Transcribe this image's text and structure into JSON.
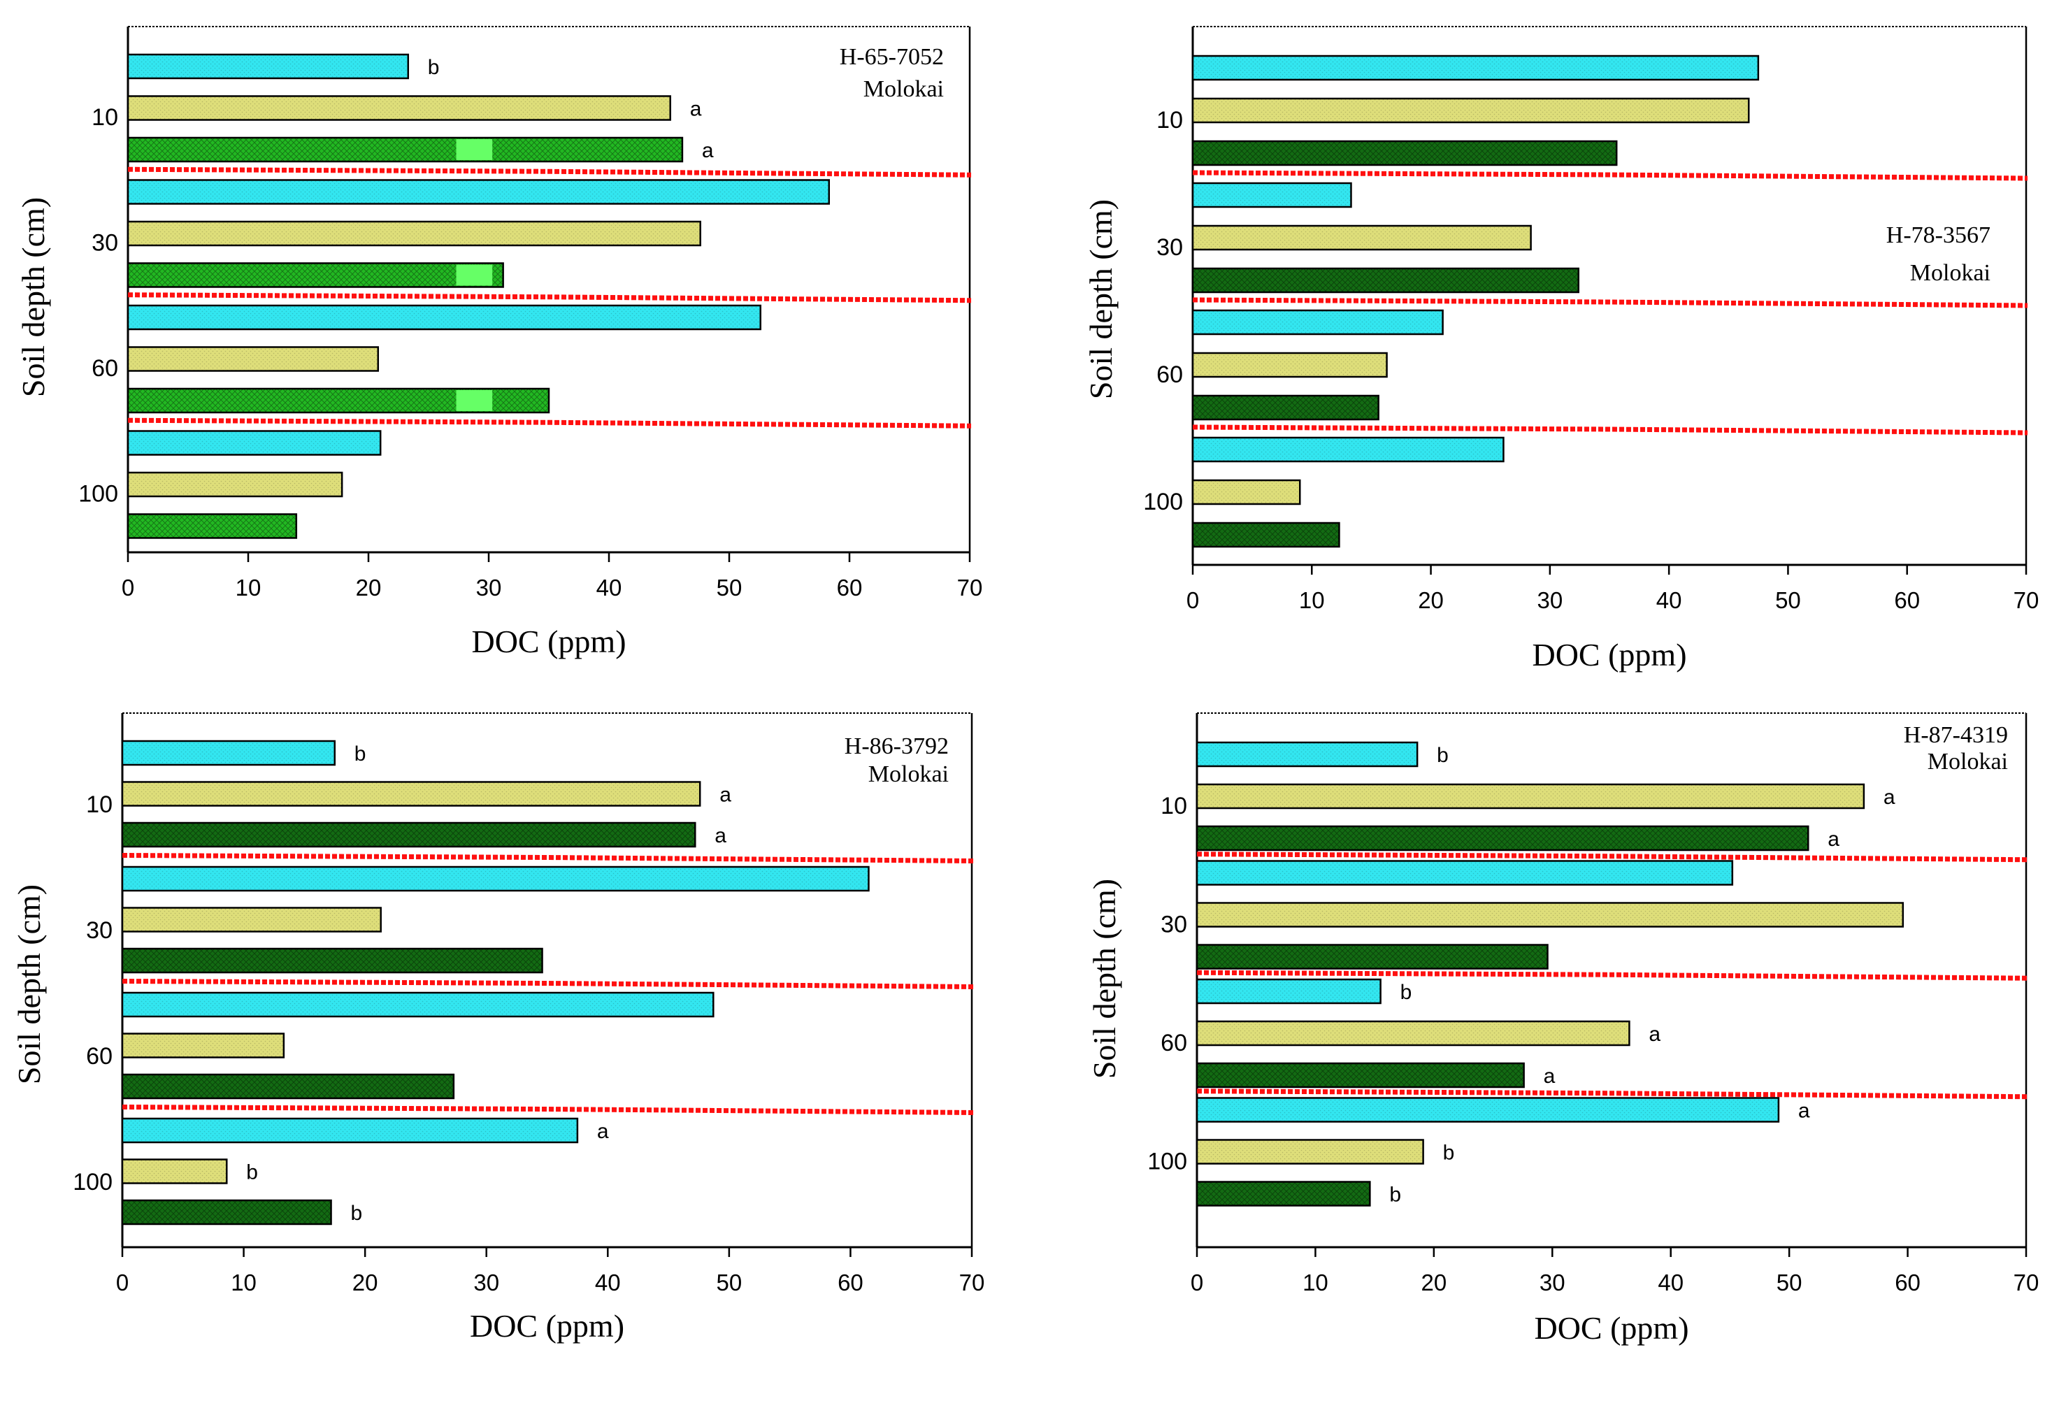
{
  "chart_data": [
    {
      "type": "bar",
      "orientation": "horizontal",
      "panel": "top-left",
      "title": "H-65-7052",
      "subtitle": "Molokai",
      "label_placement": "top-right",
      "xlabel": "DOC (ppm)",
      "ylabel": "Soil depth (cm)",
      "xlim": [
        0,
        70
      ],
      "xticks": [
        "0",
        "10",
        "20",
        "30",
        "40",
        "50",
        "60",
        "70"
      ],
      "depth_groups": [
        "10",
        "30",
        "60",
        "100"
      ],
      "series": [
        {
          "name": "cyan",
          "color": "#33e6f0",
          "values": [
            23.3,
            58.3,
            52.6,
            21.0
          ],
          "letters": [
            "b",
            "",
            "",
            ""
          ]
        },
        {
          "name": "khaki",
          "color": "#dede7a",
          "values": [
            45.1,
            47.6,
            20.8,
            17.8
          ],
          "letters": [
            "a",
            "",
            "",
            ""
          ]
        },
        {
          "name": "green",
          "color": "#22b822",
          "values": [
            46.1,
            31.2,
            35.0,
            14.0
          ],
          "letters": [
            "a",
            "",
            "",
            ""
          ]
        }
      ]
    },
    {
      "type": "bar",
      "orientation": "horizontal",
      "panel": "top-right",
      "title": "H-78-3567",
      "subtitle": "Molokai",
      "label_placement": "middle-right",
      "xlabel": "DOC (ppm)",
      "ylabel": "Soil depth (cm)",
      "xlim": [
        0,
        70
      ],
      "xticks": [
        "0",
        "10",
        "20",
        "30",
        "40",
        "50",
        "60",
        "70"
      ],
      "depth_groups": [
        "10",
        "30",
        "60",
        "100"
      ],
      "series": [
        {
          "name": "cyan",
          "color": "#33e6f0",
          "values": [
            47.5,
            13.3,
            21.0,
            26.1
          ],
          "letters": [
            "",
            "",
            "",
            ""
          ]
        },
        {
          "name": "khaki",
          "color": "#dede7a",
          "values": [
            46.7,
            28.4,
            16.3,
            9.0
          ],
          "letters": [
            "",
            "",
            "",
            ""
          ]
        },
        {
          "name": "green",
          "color": "#136b13",
          "values": [
            35.6,
            32.4,
            15.6,
            12.3
          ],
          "letters": [
            "",
            "",
            "",
            ""
          ]
        }
      ]
    },
    {
      "type": "bar",
      "orientation": "horizontal",
      "panel": "bottom-left",
      "title": "H-86-3792",
      "subtitle": "Molokai",
      "label_placement": "top-right",
      "xlabel": "DOC (ppm)",
      "ylabel": "Soil depth (cm)",
      "xlim": [
        0,
        70
      ],
      "xticks": [
        "0",
        "10",
        "20",
        "30",
        "40",
        "50",
        "60",
        "70"
      ],
      "depth_groups": [
        "10",
        "30",
        "60",
        "100"
      ],
      "series": [
        {
          "name": "cyan",
          "color": "#33e6f0",
          "values": [
            17.5,
            61.5,
            48.7,
            37.5
          ],
          "letters": [
            "b",
            "",
            "",
            "a"
          ]
        },
        {
          "name": "khaki",
          "color": "#dede7a",
          "values": [
            47.6,
            21.3,
            13.3,
            8.6
          ],
          "letters": [
            "a",
            "",
            "",
            "b"
          ]
        },
        {
          "name": "green",
          "color": "#136b13",
          "values": [
            47.2,
            34.6,
            27.3,
            17.2
          ],
          "letters": [
            "a",
            "",
            "",
            "b"
          ]
        }
      ]
    },
    {
      "type": "bar",
      "orientation": "horizontal",
      "panel": "bottom-right",
      "title": "H-87-4319",
      "subtitle": "Molokai",
      "label_placement": "top-right",
      "xlabel": "DOC (ppm)",
      "ylabel": "Soil depth (cm)",
      "xlim": [
        0,
        70
      ],
      "xticks": [
        "0",
        "10",
        "20",
        "30",
        "40",
        "50",
        "60",
        "70"
      ],
      "depth_groups": [
        "10",
        "30",
        "60",
        "100"
      ],
      "series": [
        {
          "name": "cyan",
          "color": "#33e6f0",
          "values": [
            18.6,
            45.2,
            15.5,
            49.1
          ],
          "letters": [
            "b",
            "",
            "b",
            "a"
          ]
        },
        {
          "name": "khaki",
          "color": "#dede7a",
          "values": [
            56.3,
            59.6,
            36.5,
            19.1
          ],
          "letters": [
            "a",
            "",
            "a",
            "b"
          ]
        },
        {
          "name": "green",
          "color": "#136b13",
          "values": [
            51.6,
            29.6,
            27.6,
            14.6
          ],
          "letters": [
            "a",
            "",
            "a",
            "b"
          ]
        }
      ]
    }
  ]
}
